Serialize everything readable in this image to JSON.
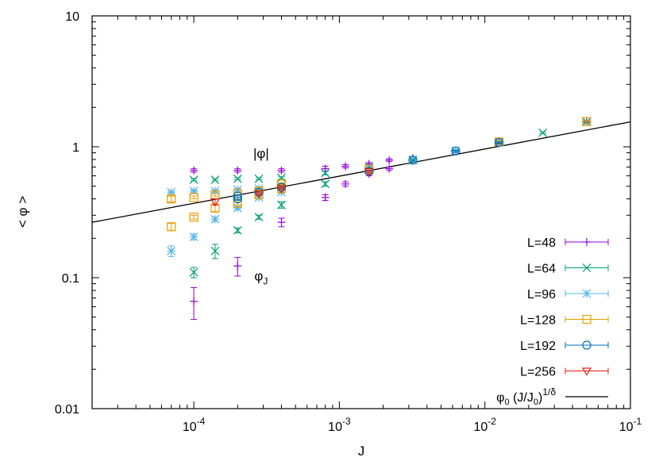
{
  "chart_data": {
    "type": "scatter",
    "xlabel": "J",
    "ylabel": "< φ >",
    "xscale": "log",
    "yscale": "log",
    "xlim": [
      2e-05,
      0.1
    ],
    "ylim": [
      0.01,
      10
    ],
    "x_ticks": [
      {
        "value": 0.0001,
        "mantissa": "10",
        "exp": "-4"
      },
      {
        "value": 0.001,
        "mantissa": "10",
        "exp": "-3"
      },
      {
        "value": 0.01,
        "mantissa": "10",
        "exp": "-2"
      },
      {
        "value": 0.1,
        "mantissa": "10",
        "exp": "-1"
      }
    ],
    "y_ticks": [
      {
        "value": 0.01,
        "label": "0.01"
      },
      {
        "value": 0.1,
        "label": "0.1"
      },
      {
        "value": 1,
        "label": "1"
      },
      {
        "value": 10,
        "label": "10"
      }
    ],
    "grid": false,
    "legend_position": "bottom-right",
    "annotations": [
      {
        "text": "|φ|",
        "x": 0.00029,
        "y": 0.82
      },
      {
        "text": "φ",
        "sub": "J",
        "x": 0.00029,
        "y": 0.095
      }
    ],
    "series": [
      {
        "name": "L=48",
        "color": "#9400d3",
        "marker": "plus",
        "points": [
          {
            "x": 0.0001,
            "y": 0.66,
            "err": 0.02
          },
          {
            "x": 0.0002,
            "y": 0.66,
            "err": 0.02
          },
          {
            "x": 0.0004,
            "y": 0.66,
            "err": 0.02
          },
          {
            "x": 0.0008,
            "y": 0.68,
            "err": 0.03
          },
          {
            "x": 0.0011,
            "y": 0.71,
            "err": 0.02
          },
          {
            "x": 0.0016,
            "y": 0.74,
            "err": 0.02
          },
          {
            "x": 0.0022,
            "y": 0.79,
            "err": 0.02
          },
          {
            "x": 0.0032,
            "y": 0.82,
            "err": 0.02
          },
          {
            "x": 0.0063,
            "y": 0.92,
            "err": 0.02
          },
          {
            "x": 0.0125,
            "y": 1.07,
            "err": 0.02
          },
          {
            "x": 0.05,
            "y": 1.55,
            "err": 0.03
          },
          {
            "x": 0.0001,
            "y": 0.066,
            "err": 0.018
          },
          {
            "x": 0.0002,
            "y": 0.123,
            "err": 0.02
          },
          {
            "x": 0.0004,
            "y": 0.265,
            "err": 0.02
          },
          {
            "x": 0.0008,
            "y": 0.41,
            "err": 0.02
          },
          {
            "x": 0.0011,
            "y": 0.52,
            "err": 0.02
          },
          {
            "x": 0.0016,
            "y": 0.62,
            "err": 0.02
          },
          {
            "x": 0.0022,
            "y": 0.68,
            "err": 0.02
          }
        ]
      },
      {
        "name": "L=64",
        "color": "#009e73",
        "marker": "cross",
        "points": [
          {
            "x": 0.0001,
            "y": 0.56,
            "err": 0.01
          },
          {
            "x": 0.00014,
            "y": 0.56,
            "err": 0.01
          },
          {
            "x": 0.0002,
            "y": 0.57,
            "err": 0.01
          },
          {
            "x": 0.00028,
            "y": 0.57,
            "err": 0.01
          },
          {
            "x": 0.0004,
            "y": 0.58,
            "err": 0.01
          },
          {
            "x": 0.0008,
            "y": 0.63,
            "err": 0.02
          },
          {
            "x": 0.0016,
            "y": 0.7,
            "err": 0.02
          },
          {
            "x": 0.0032,
            "y": 0.79,
            "err": 0.02
          },
          {
            "x": 0.0063,
            "y": 0.93,
            "err": 0.02
          },
          {
            "x": 0.0125,
            "y": 1.08,
            "err": 0.02
          },
          {
            "x": 0.025,
            "y": 1.28,
            "err": 0.02
          },
          {
            "x": 0.05,
            "y": 1.55,
            "err": 0.03
          },
          {
            "x": 0.0001,
            "y": 0.11,
            "err": 0.01
          },
          {
            "x": 0.00014,
            "y": 0.16,
            "err": 0.02
          },
          {
            "x": 0.0002,
            "y": 0.23,
            "err": 0.01
          },
          {
            "x": 0.00028,
            "y": 0.29,
            "err": 0.01
          },
          {
            "x": 0.0004,
            "y": 0.36,
            "err": 0.02
          },
          {
            "x": 0.0008,
            "y": 0.52,
            "err": 0.02
          }
        ]
      },
      {
        "name": "L=96",
        "color": "#56b4e9",
        "marker": "star",
        "points": [
          {
            "x": 7e-05,
            "y": 0.45,
            "err": 0.01
          },
          {
            "x": 0.0001,
            "y": 0.46,
            "err": 0.01
          },
          {
            "x": 0.00014,
            "y": 0.46,
            "err": 0.01
          },
          {
            "x": 0.0002,
            "y": 0.47,
            "err": 0.01
          },
          {
            "x": 0.00028,
            "y": 0.48,
            "err": 0.01
          },
          {
            "x": 0.0004,
            "y": 0.5,
            "err": 0.01
          },
          {
            "x": 0.0016,
            "y": 0.67,
            "err": 0.02
          },
          {
            "x": 0.0032,
            "y": 0.8,
            "err": 0.02
          },
          {
            "x": 0.0063,
            "y": 0.93,
            "err": 0.02
          },
          {
            "x": 7e-05,
            "y": 0.16,
            "err": 0.015
          },
          {
            "x": 0.0001,
            "y": 0.205,
            "err": 0.01
          },
          {
            "x": 0.00014,
            "y": 0.28,
            "err": 0.01
          },
          {
            "x": 0.0002,
            "y": 0.34,
            "err": 0.01
          },
          {
            "x": 0.00028,
            "y": 0.41,
            "err": 0.01
          },
          {
            "x": 0.0004,
            "y": 0.45,
            "err": 0.01
          }
        ]
      },
      {
        "name": "L=128",
        "color": "#e69f00",
        "marker": "square",
        "points": [
          {
            "x": 7e-05,
            "y": 0.4,
            "err": 0.02
          },
          {
            "x": 0.0001,
            "y": 0.41,
            "err": 0.01
          },
          {
            "x": 0.00014,
            "y": 0.43,
            "err": 0.01
          },
          {
            "x": 0.0002,
            "y": 0.44,
            "err": 0.01
          },
          {
            "x": 0.00028,
            "y": 0.46,
            "err": 0.01
          },
          {
            "x": 0.0004,
            "y": 0.52,
            "err": 0.01
          },
          {
            "x": 0.0016,
            "y": 0.67,
            "err": 0.01
          },
          {
            "x": 0.0125,
            "y": 1.09,
            "err": 0.02
          },
          {
            "x": 0.05,
            "y": 1.56,
            "err": 0.02
          },
          {
            "x": 7e-05,
            "y": 0.245,
            "err": 0.015
          },
          {
            "x": 0.0001,
            "y": 0.29,
            "err": 0.01
          },
          {
            "x": 0.00014,
            "y": 0.34,
            "err": 0.02
          },
          {
            "x": 0.0002,
            "y": 0.37,
            "err": 0.01
          },
          {
            "x": 0.00028,
            "y": 0.43,
            "err": 0.01
          },
          {
            "x": 0.0004,
            "y": 0.48,
            "err": 0.01
          }
        ]
      },
      {
        "name": "L=192",
        "color": "#0072b2",
        "marker": "circle",
        "points": [
          {
            "x": 0.0002,
            "y": 0.42,
            "err": 0.01
          },
          {
            "x": 0.00028,
            "y": 0.45,
            "err": 0.01
          },
          {
            "x": 0.0004,
            "y": 0.49,
            "err": 0.01
          },
          {
            "x": 0.0016,
            "y": 0.65,
            "err": 0.01
          },
          {
            "x": 0.0032,
            "y": 0.79,
            "err": 0.01
          },
          {
            "x": 0.0063,
            "y": 0.93,
            "err": 0.01
          },
          {
            "x": 0.0125,
            "y": 1.08,
            "err": 0.01
          },
          {
            "x": 0.0002,
            "y": 0.4,
            "err": 0.01
          }
        ]
      },
      {
        "name": "L=256",
        "color": "#e51e10",
        "marker": "triangle-down",
        "points": [
          {
            "x": 0.00014,
            "y": 0.38,
            "err": 0.02
          },
          {
            "x": 0.00028,
            "y": 0.44,
            "err": 0.01
          },
          {
            "x": 0.0004,
            "y": 0.48,
            "err": 0.01
          },
          {
            "x": 0.0016,
            "y": 0.65,
            "err": 0.01
          }
        ]
      },
      {
        "name": "φ₀ (J/J₀)^{1/δ}",
        "color": "#000000",
        "marker": "line",
        "line": [
          [
            2e-05,
            0.265
          ],
          [
            0.1,
            1.55
          ]
        ]
      }
    ],
    "legend": [
      {
        "text": "L=48"
      },
      {
        "text": "L=64"
      },
      {
        "text": "L=96"
      },
      {
        "text": "L=128"
      },
      {
        "text": "L=192"
      },
      {
        "text": "L=256"
      },
      {
        "phi": "φ",
        "sub0": "0",
        "mid": " (J/J",
        "sub1": "0",
        "close": ")",
        "sup": "1/δ"
      }
    ]
  }
}
